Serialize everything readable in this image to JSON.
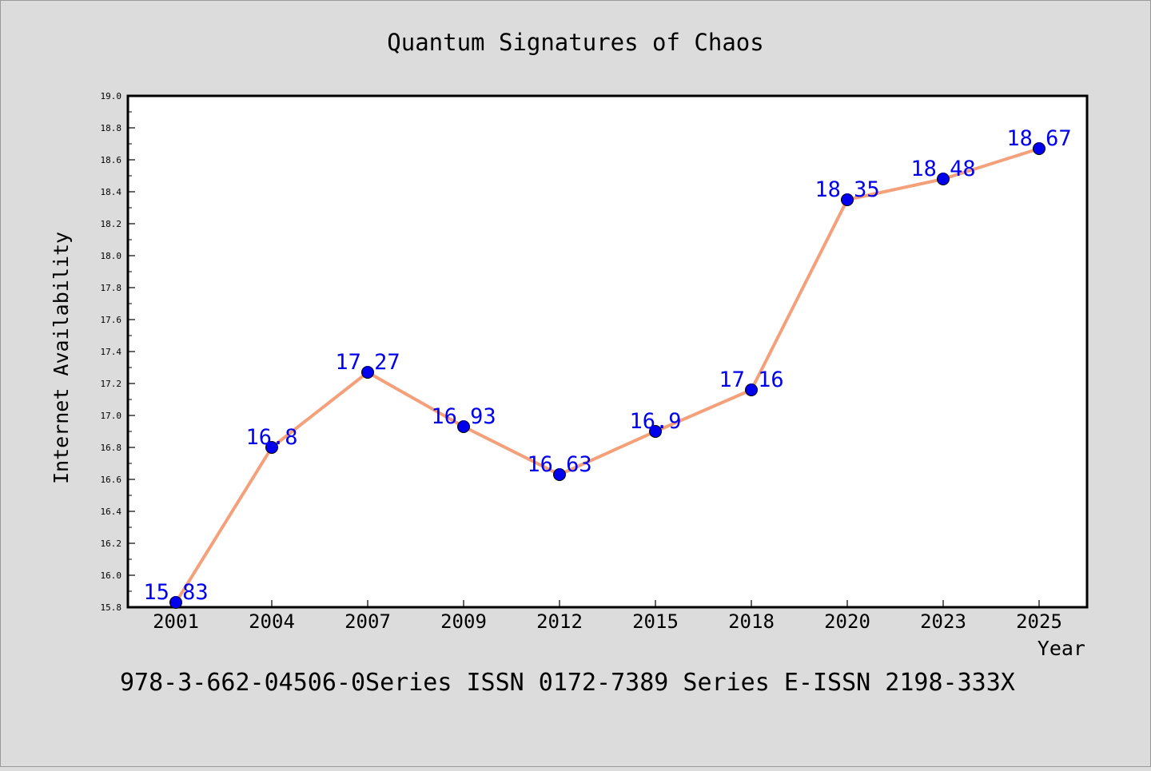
{
  "chart_data": {
    "type": "line",
    "title": "Quantum Signatures of Chaos",
    "xlabel": "Year",
    "ylabel": "Internet Availability",
    "categories": [
      "2001",
      "2004",
      "2007",
      "2009",
      "2012",
      "2015",
      "2018",
      "2020",
      "2023",
      "2025"
    ],
    "series": [
      {
        "values": [
          15.83,
          16.8,
          17.27,
          16.93,
          16.63,
          16.9,
          17.16,
          18.35,
          18.48,
          18.67
        ],
        "line_color": "#f4a07a",
        "marker_color": "#0000ee"
      }
    ],
    "data_labels": [
      "15.83",
      "16.8",
      "17.27",
      "16.93",
      "16.63",
      "16.9",
      "17.16",
      "18.35",
      "18.48",
      "18.67"
    ],
    "ylim": [
      15.8,
      19.0
    ],
    "y_ticks": [
      "15.8",
      "16.0",
      "16.2",
      "16.4",
      "16.6",
      "16.8",
      "17.0",
      "17.2",
      "17.4",
      "17.6",
      "17.8",
      "18.0",
      "18.2",
      "18.4",
      "18.6",
      "18.8",
      "19.0"
    ],
    "grid": false,
    "legend": "none",
    "label_color": "#0000ee",
    "background_color": "#dcdcdc",
    "plot_background": "#ffffff"
  },
  "footer": {
    "text": "978-3-662-04506-0Series ISSN 0172-7389 Series E-ISSN 2198-333X"
  }
}
